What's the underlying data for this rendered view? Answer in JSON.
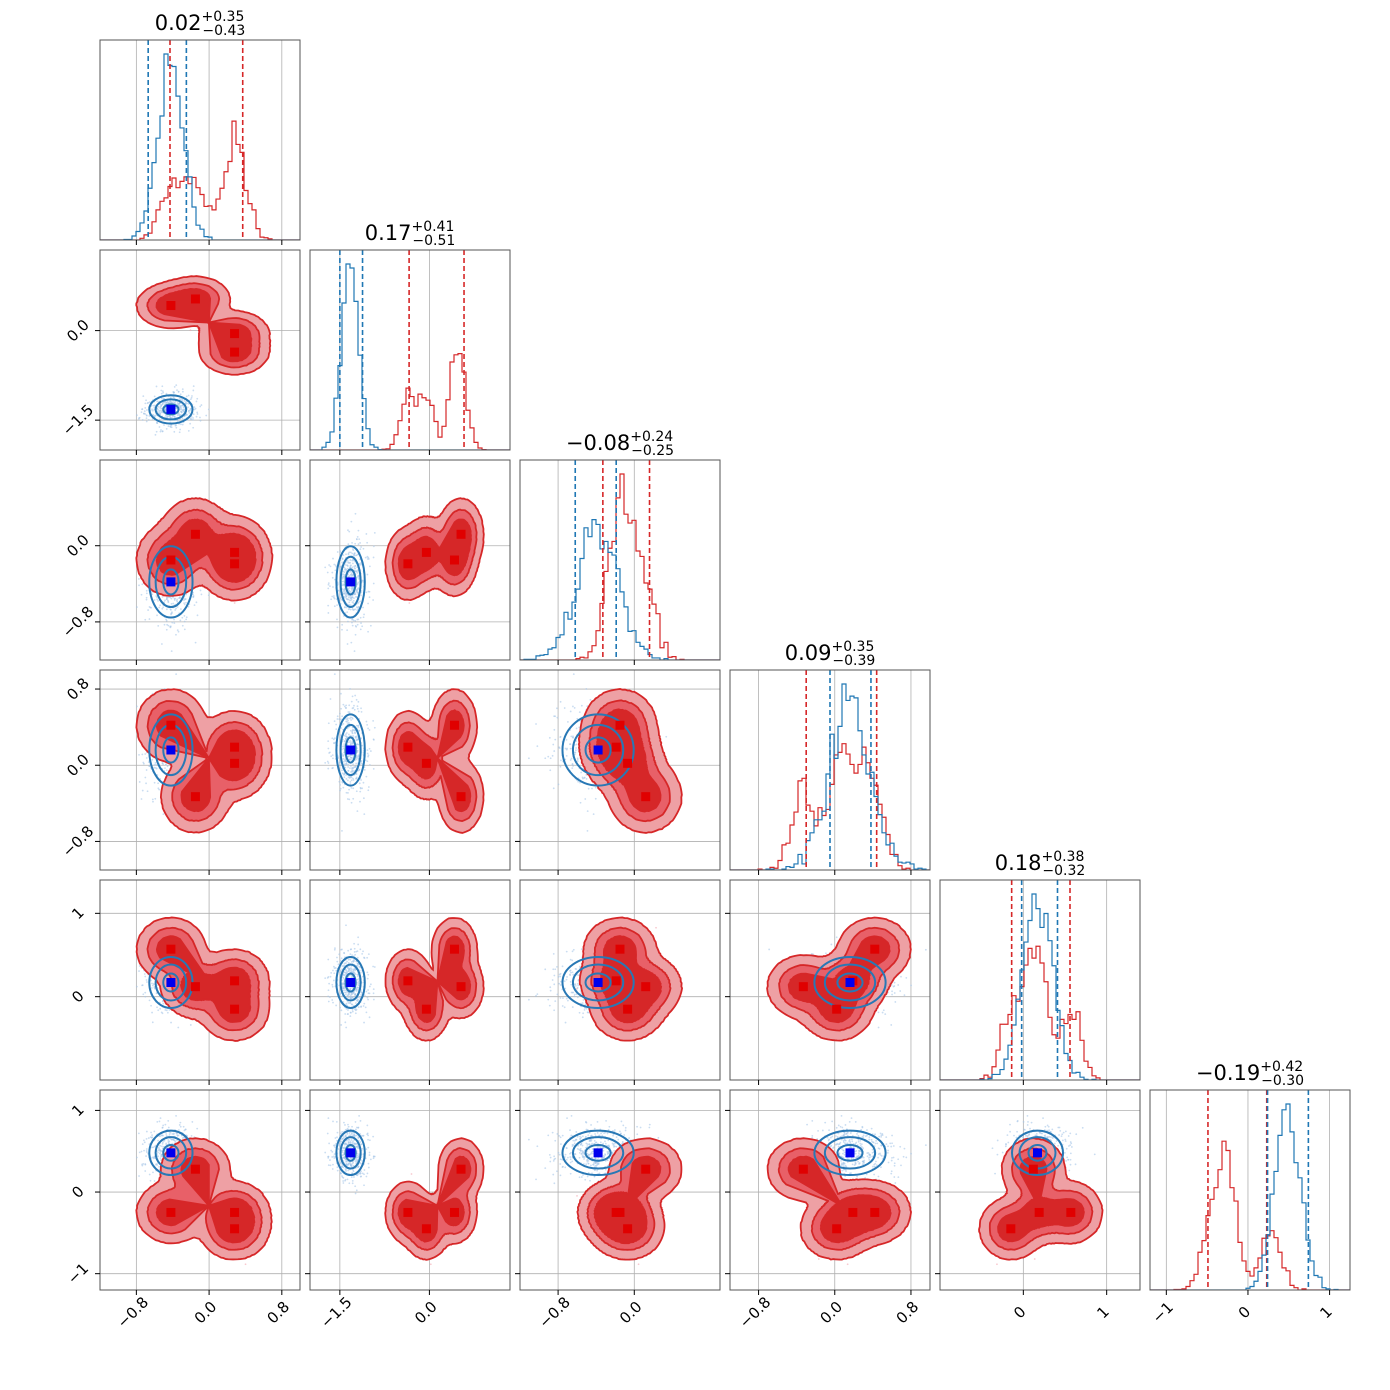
{
  "chart_data": {
    "type": "corner",
    "parameters": 6,
    "titles": [
      {
        "value": "0.02",
        "plus": "+0.35",
        "minus": "−0.43"
      },
      {
        "value": "0.17",
        "plus": "+0.41",
        "minus": "−0.51"
      },
      {
        "value": "−0.08",
        "plus": "+0.24",
        "minus": "−0.25"
      },
      {
        "value": "0.09",
        "plus": "+0.35",
        "minus": "−0.39"
      },
      {
        "value": "0.18",
        "plus": "+0.38",
        "minus": "−0.32"
      },
      {
        "value": "−0.19",
        "plus": "+0.42",
        "minus": "−0.30"
      }
    ],
    "ranges": [
      [
        -1.2,
        1.0
      ],
      [
        -2.0,
        1.35
      ],
      [
        -1.2,
        0.9
      ],
      [
        -1.1,
        1.0
      ],
      [
        -1.0,
        1.4
      ],
      [
        -1.2,
        1.25
      ]
    ],
    "ticks": [
      {
        "values": [
          -0.8,
          0.0,
          0.8
        ],
        "labels": [
          "−0.8",
          "0.0",
          "0.8"
        ]
      },
      {
        "values": [
          -1.5,
          0.0
        ],
        "labels": [
          "−1.5",
          "0.0"
        ]
      },
      {
        "values": [
          -0.8,
          0.0
        ],
        "labels": [
          "−0.8",
          "0.0"
        ]
      },
      {
        "values": [
          -0.8,
          0.0,
          0.8
        ],
        "labels": [
          "−0.8",
          "0.0",
          "0.8"
        ]
      },
      {
        "values": [
          0,
          1
        ],
        "labels": [
          "0",
          "1"
        ]
      },
      {
        "values": [
          -1,
          0,
          1
        ],
        "labels": [
          "−1",
          "0",
          "1"
        ]
      }
    ],
    "series": [
      {
        "color": "#2878b5",
        "means": [
          -0.42,
          -1.32,
          -0.38,
          0.16,
          0.17,
          0.48
        ],
        "sds": [
          0.14,
          0.14,
          0.22,
          0.22,
          0.18,
          0.16
        ],
        "quantile_lines": [
          [
            -0.67,
            -0.25
          ],
          [
            -1.5,
            -1.12
          ],
          [
            -0.62,
            -0.19
          ],
          [
            -0.05,
            0.38
          ],
          [
            -0.02,
            0.41
          ],
          [
            0.24,
            0.74
          ]
        ]
      },
      {
        "color": "#d62728",
        "modes": [
          [
            -0.42,
            0.42,
            -0.15,
            0.42,
            0.57,
            -0.25
          ],
          [
            -0.15,
            0.53,
            0.12,
            -0.33,
            0.12,
            0.28
          ],
          [
            0.28,
            -0.05,
            -0.07,
            0.02,
            -0.15,
            -0.45
          ],
          [
            0.28,
            -0.36,
            -0.19,
            0.19,
            0.19,
            -0.25
          ]
        ],
        "quantile_lines": [
          [
            -0.43,
            0.37
          ],
          [
            -0.34,
            0.58
          ],
          [
            -0.33,
            0.16
          ],
          [
            -0.3,
            0.44
          ],
          [
            -0.14,
            0.56
          ],
          [
            -0.49,
            0.23
          ]
        ]
      }
    ],
    "markers": {
      "red": "#e00000",
      "blue": "#0000ee"
    },
    "grid": true
  }
}
